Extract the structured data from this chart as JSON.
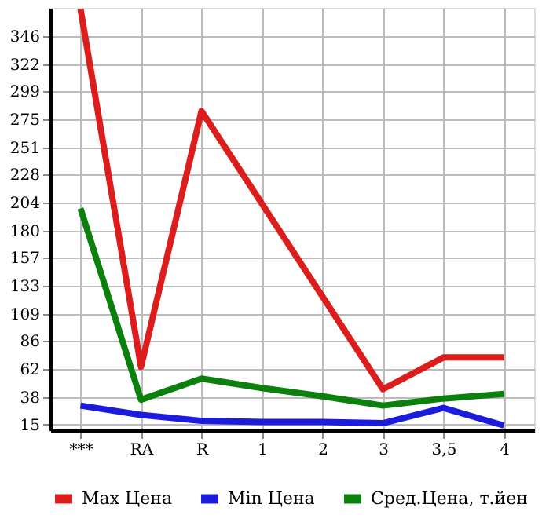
{
  "chart_data": {
    "type": "line",
    "categories": [
      "***",
      "RA",
      "R",
      "1",
      "2",
      "3",
      "3,5",
      "4"
    ],
    "series": [
      {
        "name": "Max Цена",
        "color": "#dd1c1c",
        "values": [
          369,
          64,
          282,
          203,
          124,
          45,
          72,
          72
        ]
      },
      {
        "name": "Min Цена",
        "color": "#1c1cdd",
        "values": [
          31,
          23,
          18,
          17,
          17,
          16,
          29,
          14
        ]
      },
      {
        "name": "Сред.Цена, т.йен",
        "color": "#0c800c",
        "values": [
          199,
          36,
          54,
          46,
          39,
          31,
          37,
          41
        ]
      }
    ],
    "ylim": [
      10,
      370
    ],
    "yticks": [
      15,
      38,
      62,
      86,
      109,
      133,
      157,
      180,
      204,
      228,
      251,
      275,
      299,
      322,
      346
    ],
    "grid": true,
    "legend": "bottom",
    "marker": "none",
    "line_style": "solid"
  }
}
